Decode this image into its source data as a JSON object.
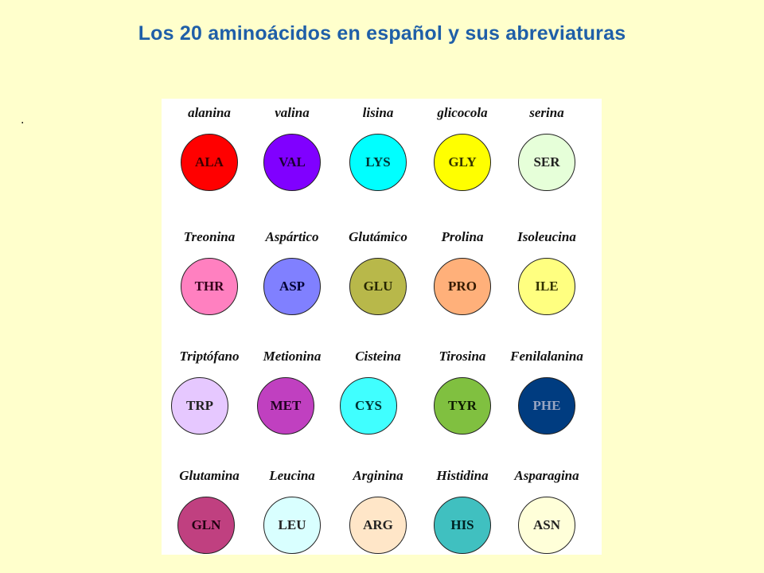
{
  "title": "Los 20 aminoácidos en español y sus abreviaturas",
  "bullet": ".",
  "amino_acids": [
    {
      "name": "alanina",
      "abbr": "ALA",
      "color": "#FF0000",
      "text_color": "#3a0000"
    },
    {
      "name": "valina",
      "abbr": "VAL",
      "color": "#8000FF",
      "text_color": "#1a0033"
    },
    {
      "name": "lisina",
      "abbr": "LYS",
      "color": "#00FFFF",
      "text_color": "#003333"
    },
    {
      "name": "glicocola",
      "abbr": "GLY",
      "color": "#FFFF00",
      "text_color": "#333300"
    },
    {
      "name": "serina",
      "abbr": "SER",
      "color": "#E6FFD9",
      "text_color": "#222222"
    },
    {
      "name": "Treonina",
      "abbr": "THR",
      "color": "#FF80C0",
      "text_color": "#330019"
    },
    {
      "name": "Aspártico",
      "abbr": "ASP",
      "color": "#8080FF",
      "text_color": "#000033"
    },
    {
      "name": "Glutámico",
      "abbr": "GLU",
      "color": "#B8B84A",
      "text_color": "#262600"
    },
    {
      "name": "Prolina",
      "abbr": "PRO",
      "color": "#FFB07A",
      "text_color": "#331a00"
    },
    {
      "name": "Isoleucina",
      "abbr": "ILE",
      "color": "#FFFF80",
      "text_color": "#333300"
    },
    {
      "name": "Triptófano",
      "abbr": "TRP",
      "color": "#E6C8FF",
      "text_color": "#222222"
    },
    {
      "name": "Metionina",
      "abbr": "MET",
      "color": "#C040C0",
      "text_color": "#200020"
    },
    {
      "name": "Cisteina",
      "abbr": "CYS",
      "color": "#40FFFF",
      "text_color": "#003333"
    },
    {
      "name": "Tirosina",
      "abbr": "TYR",
      "color": "#80C040",
      "text_color": "#0d1a00"
    },
    {
      "name": "Fenilalanina",
      "abbr": "PHE",
      "color": "#003C80",
      "text_color": "#9aa6c2"
    },
    {
      "name": "Glutamina",
      "abbr": "GLN",
      "color": "#C04080",
      "text_color": "#200010"
    },
    {
      "name": "Leucina",
      "abbr": "LEU",
      "color": "#D9FFFF",
      "text_color": "#222222"
    },
    {
      "name": "Arginina",
      "abbr": "ARG",
      "color": "#FFE6C8",
      "text_color": "#222222"
    },
    {
      "name": "Histidina",
      "abbr": "HIS",
      "color": "#40C0C0",
      "text_color": "#002020"
    },
    {
      "name": "Asparagina",
      "abbr": "ASN",
      "color": "#FFFFD9",
      "text_color": "#222222"
    }
  ]
}
